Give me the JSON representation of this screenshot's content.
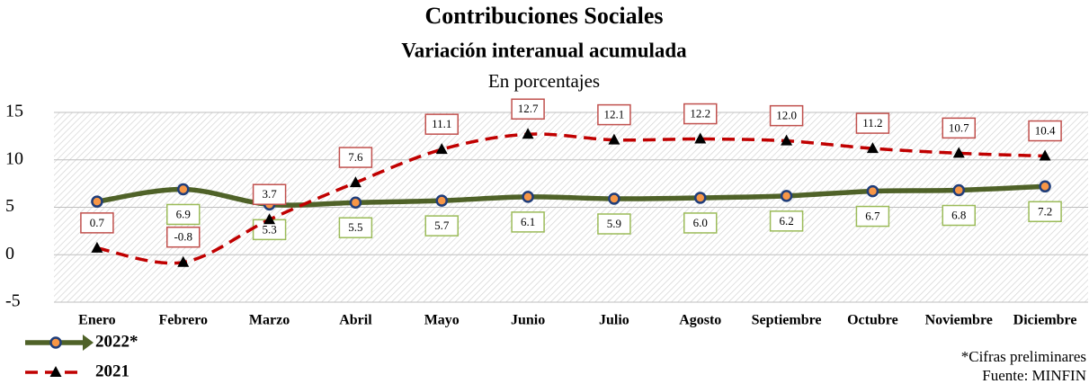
{
  "chart_data": {
    "type": "line",
    "title": "Contribuciones Sociales",
    "subtitle": "Variación interanual acumulada",
    "unit_note": "En porcentajes",
    "categories": [
      "Enero",
      "Febrero",
      "Marzo",
      "Abril",
      "Mayo",
      "Junio",
      "Julio",
      "Agosto",
      "Septiembre",
      "Octubre",
      "Noviembre",
      "Diciembre"
    ],
    "series": [
      {
        "name": "2022*",
        "color": "#4f6228",
        "label_color": "#9bbb59",
        "marker": "circle",
        "values": [
          5.6,
          6.9,
          5.3,
          5.5,
          5.7,
          6.1,
          5.9,
          6.0,
          6.2,
          6.7,
          6.8,
          7.2
        ],
        "value_labels": [
          null,
          "6.9",
          "5.3",
          "5.5",
          "5.7",
          "6.1",
          "5.9",
          "6.0",
          "6.2",
          "6.7",
          "6.8",
          "7.2"
        ]
      },
      {
        "name": "2021",
        "color": "#c00000",
        "label_color": "#c0504d",
        "marker": "triangle",
        "dashed": true,
        "values": [
          0.7,
          -0.8,
          3.7,
          7.6,
          11.1,
          12.7,
          12.1,
          12.2,
          12.0,
          11.2,
          10.7,
          10.4
        ],
        "value_labels": [
          "0.7",
          "-0.8",
          "3.7",
          "7.6",
          "11.1",
          "12.7",
          "12.1",
          "12.2",
          "12.0",
          "11.2",
          "10.7",
          "10.4"
        ]
      }
    ],
    "ylim": [
      -5,
      15
    ],
    "yticks": [
      -5,
      0,
      5,
      10,
      15
    ],
    "grid": true,
    "notes": [
      "*Cifras preliminares",
      "Fuente: MINFIN"
    ]
  }
}
